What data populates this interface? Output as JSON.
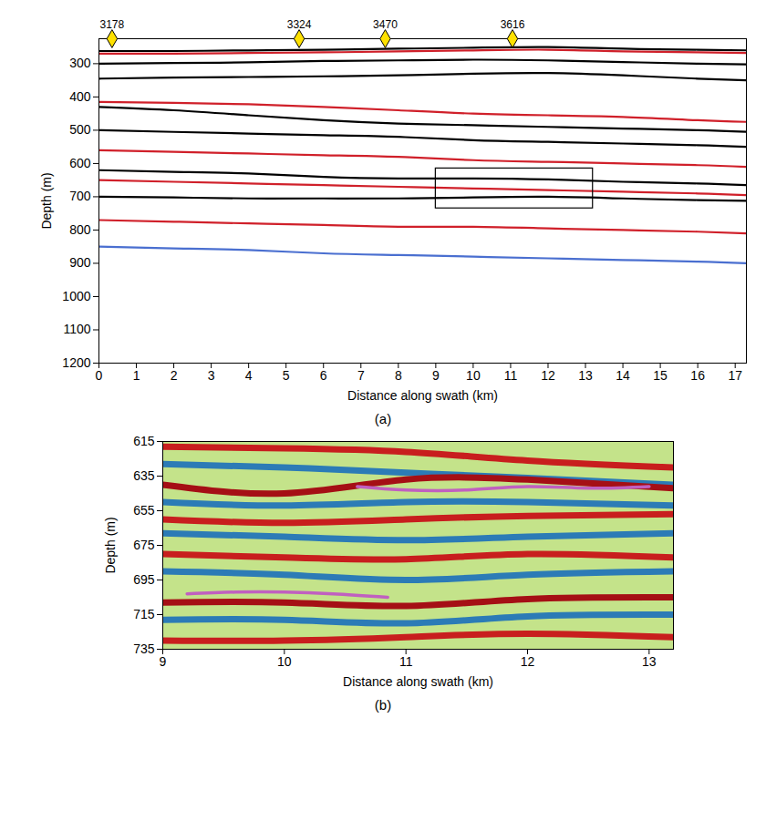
{
  "chart_data": [
    {
      "type": "line",
      "caption": "(a)",
      "x_label": "Distance along swath (km)",
      "y_label": "Depth (m)",
      "xlim": [
        0,
        17.3
      ],
      "ylim": [
        225,
        1200
      ],
      "xticks": [
        0,
        1,
        2,
        3,
        4,
        5,
        6,
        7,
        8,
        9,
        10,
        11,
        12,
        13,
        14,
        15,
        16,
        17
      ],
      "yticks": [
        300,
        400,
        500,
        600,
        700,
        800,
        900,
        1000,
        1100,
        1200
      ],
      "marker": "diamond",
      "well_markers": [
        {
          "x": 0.35,
          "label": "3178"
        },
        {
          "x": 5.35,
          "label": "3324"
        },
        {
          "x": 7.65,
          "label": "3470"
        },
        {
          "x": 11.05,
          "label": "3616"
        }
      ],
      "box": {
        "x": [
          9,
          13.2
        ],
        "y": [
          615,
          735
        ]
      },
      "series": [
        {
          "color": "#000000",
          "x": [
            0,
            2,
            4,
            6,
            8,
            10,
            12,
            14,
            16,
            17.3
          ],
          "values": [
            262,
            262,
            260,
            258,
            255,
            252,
            250,
            255,
            258,
            260
          ]
        },
        {
          "color": "#d0202a",
          "x": [
            0,
            2,
            4,
            6,
            8,
            10,
            12,
            14,
            16,
            17.3
          ],
          "values": [
            270,
            270,
            268,
            266,
            263,
            260,
            258,
            263,
            266,
            268
          ]
        },
        {
          "color": "#000000",
          "x": [
            0,
            2,
            4,
            6,
            8,
            10,
            12,
            14,
            16,
            17.3
          ],
          "values": [
            300,
            298,
            296,
            292,
            290,
            288,
            290,
            295,
            300,
            302
          ]
        },
        {
          "color": "#000000",
          "x": [
            0,
            2,
            4,
            6,
            8,
            10,
            12,
            14,
            16,
            17.3
          ],
          "values": [
            345,
            342,
            340,
            338,
            335,
            330,
            328,
            335,
            345,
            350
          ]
        },
        {
          "color": "#d0202a",
          "x": [
            0,
            2,
            4,
            6,
            8,
            10,
            12,
            14,
            16,
            17.3
          ],
          "values": [
            415,
            418,
            422,
            430,
            440,
            450,
            455,
            460,
            470,
            475
          ]
        },
        {
          "color": "#000000",
          "x": [
            0,
            2,
            4,
            6,
            8,
            10,
            12,
            14,
            16,
            17.3
          ],
          "values": [
            430,
            440,
            455,
            470,
            480,
            485,
            490,
            495,
            500,
            505
          ]
        },
        {
          "color": "#000000",
          "x": [
            0,
            2,
            4,
            6,
            8,
            10,
            12,
            14,
            16,
            17.3
          ],
          "values": [
            500,
            505,
            510,
            515,
            520,
            530,
            535,
            540,
            545,
            550
          ]
        },
        {
          "color": "#d0202a",
          "x": [
            0,
            2,
            4,
            6,
            8,
            10,
            12,
            14,
            16,
            17.3
          ],
          "values": [
            560,
            565,
            570,
            575,
            580,
            590,
            595,
            600,
            605,
            610
          ]
        },
        {
          "color": "#000000",
          "x": [
            0,
            2,
            4,
            6,
            8,
            10,
            12,
            14,
            16,
            17.3
          ],
          "values": [
            620,
            625,
            630,
            640,
            645,
            645,
            648,
            655,
            660,
            665
          ]
        },
        {
          "color": "#d0202a",
          "x": [
            0,
            2,
            4,
            6,
            8,
            10,
            12,
            14,
            16,
            17.3
          ],
          "values": [
            650,
            655,
            660,
            665,
            670,
            675,
            680,
            685,
            690,
            695
          ]
        },
        {
          "color": "#000000",
          "x": [
            0,
            2,
            4,
            6,
            8,
            10,
            12,
            14,
            16,
            17.3
          ],
          "values": [
            700,
            702,
            705,
            705,
            705,
            702,
            700,
            705,
            710,
            712
          ]
        },
        {
          "color": "#d0202a",
          "x": [
            0,
            2,
            4,
            6,
            8,
            10,
            12,
            14,
            16,
            17.3
          ],
          "values": [
            770,
            775,
            780,
            785,
            790,
            790,
            795,
            800,
            805,
            810
          ]
        },
        {
          "color": "#4a6fd0",
          "x": [
            0,
            2,
            4,
            6,
            8,
            10,
            12,
            14,
            16,
            17.3
          ],
          "values": [
            850,
            855,
            860,
            870,
            875,
            880,
            885,
            890,
            895,
            900
          ]
        }
      ]
    },
    {
      "type": "line",
      "caption": "(b)",
      "x_label": "Distance along swath (km)",
      "y_label": "Depth (m)",
      "xlim": [
        9,
        13.2
      ],
      "ylim": [
        615,
        735
      ],
      "xticks": [
        9,
        10,
        11,
        12,
        13
      ],
      "yticks": [
        615,
        635,
        655,
        675,
        695,
        715,
        735
      ],
      "series": [
        {
          "color": "#c81e1e",
          "x": [
            9,
            10,
            11,
            12,
            13.2
          ],
          "values": [
            618,
            619,
            621,
            626,
            630
          ]
        },
        {
          "color": "#2c7bb6",
          "x": [
            9,
            10,
            11,
            12,
            13.2
          ],
          "values": [
            628,
            630,
            633,
            636,
            640
          ]
        },
        {
          "color": "#a50f15",
          "x": [
            9,
            10,
            11,
            12,
            13.2
          ],
          "values": [
            640,
            645,
            637,
            637,
            642
          ]
        },
        {
          "color": "#2c7bb6",
          "x": [
            9,
            10,
            11,
            12,
            13.2
          ],
          "values": [
            650,
            652,
            650,
            650,
            652
          ]
        },
        {
          "color": "#c81e1e",
          "x": [
            9,
            10,
            11,
            12,
            13.2
          ],
          "values": [
            660,
            662,
            660,
            658,
            657
          ]
        },
        {
          "color": "#2c7bb6",
          "x": [
            9,
            10,
            11,
            12,
            13.2
          ],
          "values": [
            668,
            670,
            672,
            670,
            668
          ]
        },
        {
          "color": "#c81e1e",
          "x": [
            9,
            10,
            11,
            12,
            13.2
          ],
          "values": [
            680,
            682,
            683,
            680,
            682
          ]
        },
        {
          "color": "#2c7bb6",
          "x": [
            9,
            10,
            11,
            12,
            13.2
          ],
          "values": [
            690,
            692,
            695,
            692,
            690
          ]
        },
        {
          "color": "#a50f15",
          "x": [
            9,
            10,
            11,
            12,
            13.2
          ],
          "values": [
            708,
            708,
            710,
            706,
            705
          ]
        },
        {
          "color": "#2c7bb6",
          "x": [
            9,
            10,
            11,
            12,
            13.2
          ],
          "values": [
            718,
            718,
            720,
            716,
            715
          ]
        },
        {
          "color": "#c81e1e",
          "x": [
            9,
            10,
            11,
            12,
            13.2
          ],
          "values": [
            730,
            730,
            728,
            726,
            728
          ]
        },
        {
          "color": "#c060c0",
          "x": [
            10.6,
            11,
            11.5,
            12,
            12.5,
            13
          ],
          "values": [
            641,
            643,
            643,
            641,
            642,
            641
          ]
        },
        {
          "color": "#c060c0",
          "x": [
            9.2,
            9.6,
            10,
            10.4,
            10.85
          ],
          "values": [
            703,
            702,
            702,
            703,
            705
          ]
        }
      ]
    }
  ]
}
